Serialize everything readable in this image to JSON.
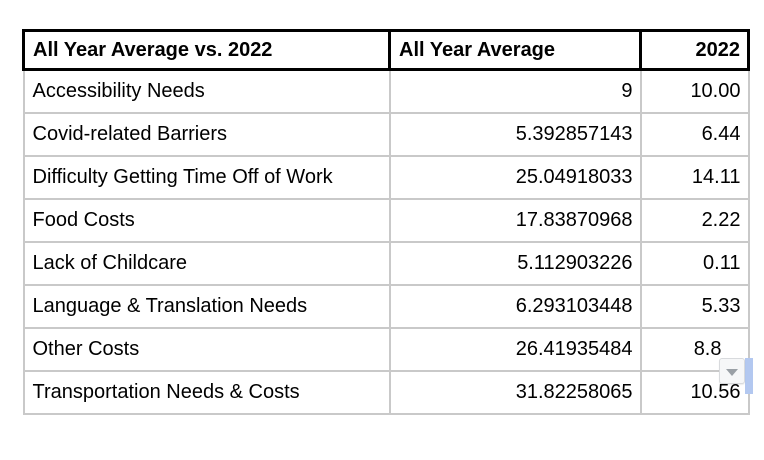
{
  "table": {
    "columns": [
      {
        "key": "label",
        "header": "All Year Average vs. 2022",
        "align": "left"
      },
      {
        "key": "avg",
        "header": "All Year Average",
        "align": "left"
      },
      {
        "key": "y2022",
        "header": "2022",
        "align": "right"
      }
    ],
    "rows": [
      {
        "label": "Accessibility Needs",
        "avg": "9",
        "y2022": "10.00"
      },
      {
        "label": "Covid-related Barriers",
        "avg": "5.392857143",
        "y2022": "6.44"
      },
      {
        "label": "Difficulty Getting Time Off of Work",
        "avg": "25.04918033",
        "y2022": "14.11"
      },
      {
        "label": "Food Costs",
        "avg": "17.83870968",
        "y2022": "2.22"
      },
      {
        "label": "Lack of Childcare",
        "avg": "5.112903226",
        "y2022": "0.11"
      },
      {
        "label": "Language & Translation Needs",
        "avg": "6.293103448",
        "y2022": "5.33"
      },
      {
        "label": "Other Costs",
        "avg": "26.41935484",
        "y2022": "8.8"
      },
      {
        "label": "Transportation Needs & Costs",
        "avg": "31.82258065",
        "y2022": "10.56"
      }
    ]
  },
  "dropdown_button": {
    "icon": "chevron-down",
    "attached_row": "Other Costs"
  },
  "colors": {
    "background": "#ffffff",
    "text": "#000000",
    "header_border": "#000000",
    "grid_line": "#c9c9c9",
    "dropdown_button_bg": "#f6f7f8",
    "dropdown_button_border": "#d8dadd",
    "dropdown_arrow": "#9aa0a6",
    "selection_strip": "#b3c8f0"
  }
}
